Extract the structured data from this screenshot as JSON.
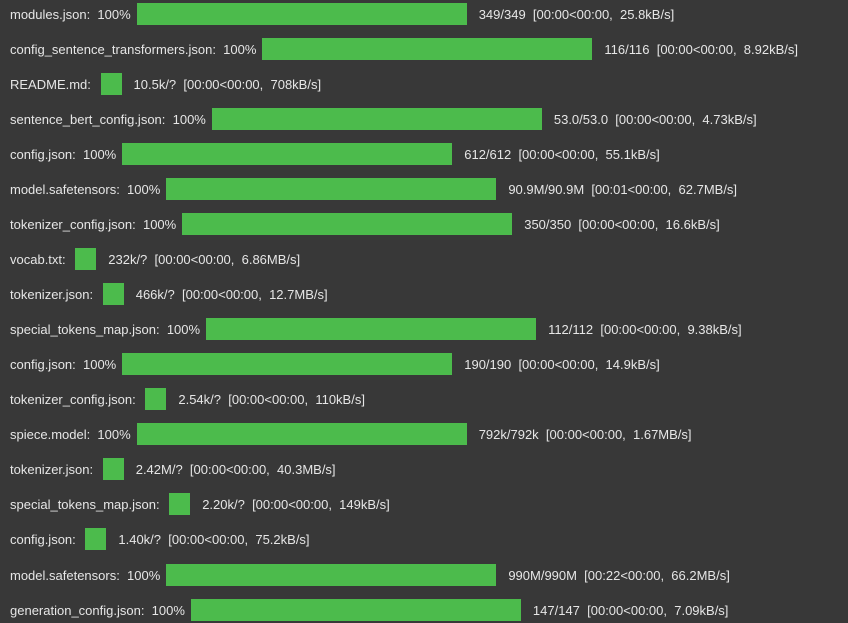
{
  "theme": {
    "background": "#383838",
    "text": "#e6e6e6",
    "bar_fill": "#4cbb4c"
  },
  "progress_rows": [
    {
      "label": "modules.json:  100%",
      "progress": 1.0,
      "stats": "349/349  [00:00<00:00,  25.8kB/s]"
    },
    {
      "label": "config_sentence_transformers.json:  100%",
      "progress": 1.0,
      "stats": "116/116  [00:00<00:00,  8.92kB/s]"
    },
    {
      "label": "README.md: ",
      "progress": null,
      "stats": "10.5k/?  [00:00<00:00,  708kB/s]"
    },
    {
      "label": "sentence_bert_config.json:  100%",
      "progress": 1.0,
      "stats": "53.0/53.0  [00:00<00:00,  4.73kB/s]"
    },
    {
      "label": "config.json:  100%",
      "progress": 1.0,
      "stats": "612/612  [00:00<00:00,  55.1kB/s]"
    },
    {
      "label": "model.safetensors:  100%",
      "progress": 1.0,
      "stats": "90.9M/90.9M  [00:01<00:00,  62.7MB/s]"
    },
    {
      "label": "tokenizer_config.json:  100%",
      "progress": 1.0,
      "stats": "350/350  [00:00<00:00,  16.6kB/s]"
    },
    {
      "label": "vocab.txt: ",
      "progress": null,
      "stats": "232k/?  [00:00<00:00,  6.86MB/s]"
    },
    {
      "label": "tokenizer.json: ",
      "progress": null,
      "stats": "466k/?  [00:00<00:00,  12.7MB/s]"
    },
    {
      "label": "special_tokens_map.json:  100%",
      "progress": 1.0,
      "stats": "112/112  [00:00<00:00,  9.38kB/s]"
    },
    {
      "label": "config.json:  100%",
      "progress": 1.0,
      "stats": "190/190  [00:00<00:00,  14.9kB/s]"
    },
    {
      "label": "tokenizer_config.json: ",
      "progress": null,
      "stats": "2.54k/?  [00:00<00:00,  110kB/s]"
    },
    {
      "label": "spiece.model:  100%",
      "progress": 1.0,
      "stats": "792k/792k  [00:00<00:00,  1.67MB/s]"
    },
    {
      "label": "tokenizer.json: ",
      "progress": null,
      "stats": "2.42M/?  [00:00<00:00,  40.3MB/s]"
    },
    {
      "label": "special_tokens_map.json: ",
      "progress": null,
      "stats": "2.20k/?  [00:00<00:00,  149kB/s]"
    },
    {
      "label": "config.json: ",
      "progress": null,
      "stats": "1.40k/?  [00:00<00:00,  75.2kB/s]"
    },
    {
      "label": "model.safetensors:  100%",
      "progress": 1.0,
      "stats": "990M/990M  [00:22<00:00,  66.2MB/s]"
    },
    {
      "label": "generation_config.json:  100%",
      "progress": 1.0,
      "stats": "147/147  [00:00<00:00,  7.09kB/s]"
    }
  ]
}
